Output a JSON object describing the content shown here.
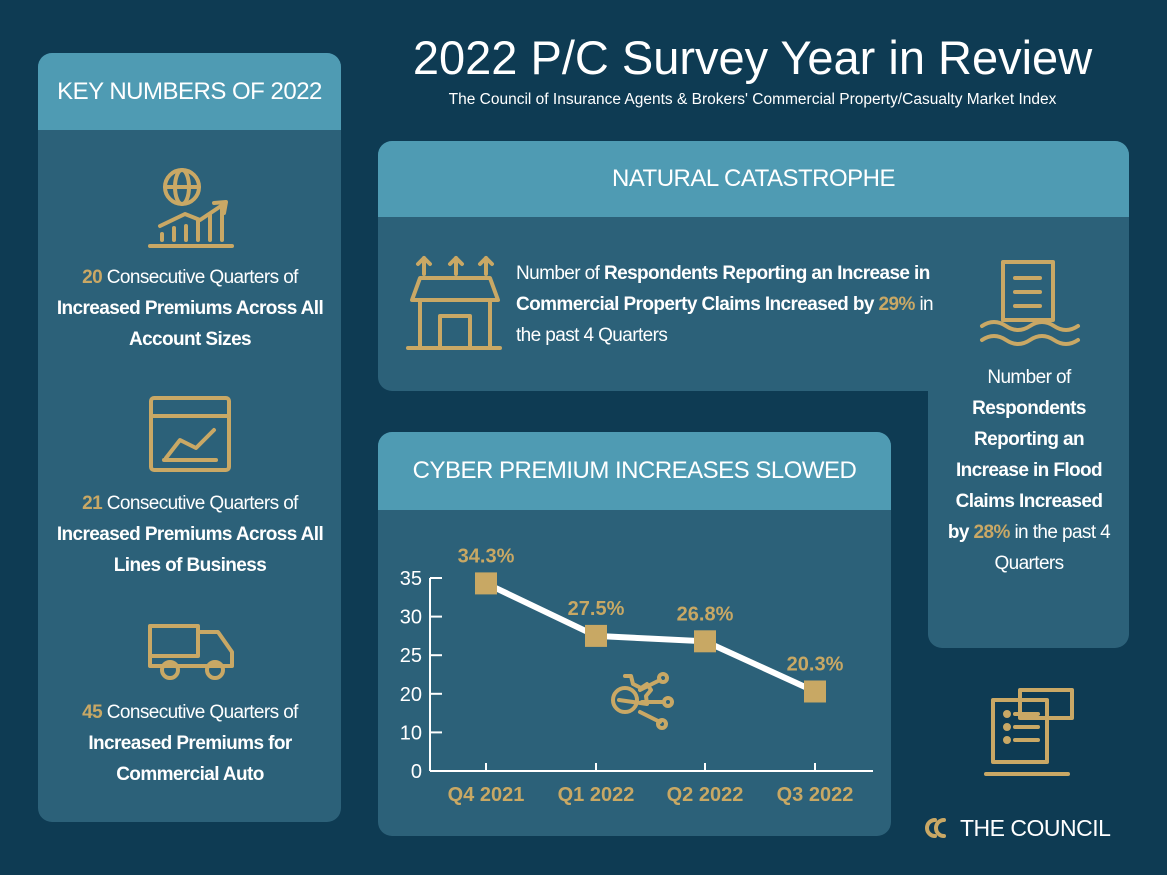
{
  "header": {
    "title": "2022 P/C Survey Year in Review",
    "subtitle": "The Council of Insurance Agents & Brokers' Commercial Property/Casualty Market Index"
  },
  "key_numbers": {
    "title": "KEY NUMBERS OF 2022",
    "items": [
      {
        "number": "20",
        "lead": "Consecutive Quarters of",
        "highlight": "Increased Premiums Across All Account Sizes"
      },
      {
        "number": "21",
        "lead": "Consecutive Quarters of",
        "highlight": "Increased Premiums Across All Lines of Business"
      },
      {
        "number": "45",
        "lead": "Consecutive Quarters of",
        "highlight": "Increased Premiums for Commercial Auto"
      }
    ]
  },
  "natural_catastrophe": {
    "title": "NATURAL CATASTROPHE",
    "property": {
      "lead": "Number of",
      "highlight": "Respondents Reporting an Increase in Commercial Property Claims Increased by",
      "figure": "29%",
      "tail": "in the past 4 Quarters"
    },
    "flood": {
      "lead": "Number of",
      "highlight": "Respondents Reporting an Increase in Flood Claims Increased by",
      "figure": "28%",
      "tail": "in the past 4 Quarters"
    }
  },
  "chart_data": {
    "type": "line",
    "title": "CYBER PREMIUM INCREASES SLOWED",
    "categories": [
      "Q4 2021",
      "Q1 2022",
      "Q2 2022",
      "Q3 2022"
    ],
    "values": [
      34.3,
      27.5,
      26.8,
      20.3
    ],
    "value_labels": [
      "34.3%",
      "27.5%",
      "26.8%",
      "20.3%"
    ],
    "color": "#ffffff",
    "marker_color": "#c8a864",
    "ylim": [
      0,
      35
    ],
    "yticks": [
      0,
      10,
      20,
      25,
      30,
      35
    ]
  },
  "footer": {
    "logo": "THE COUNCIL"
  }
}
